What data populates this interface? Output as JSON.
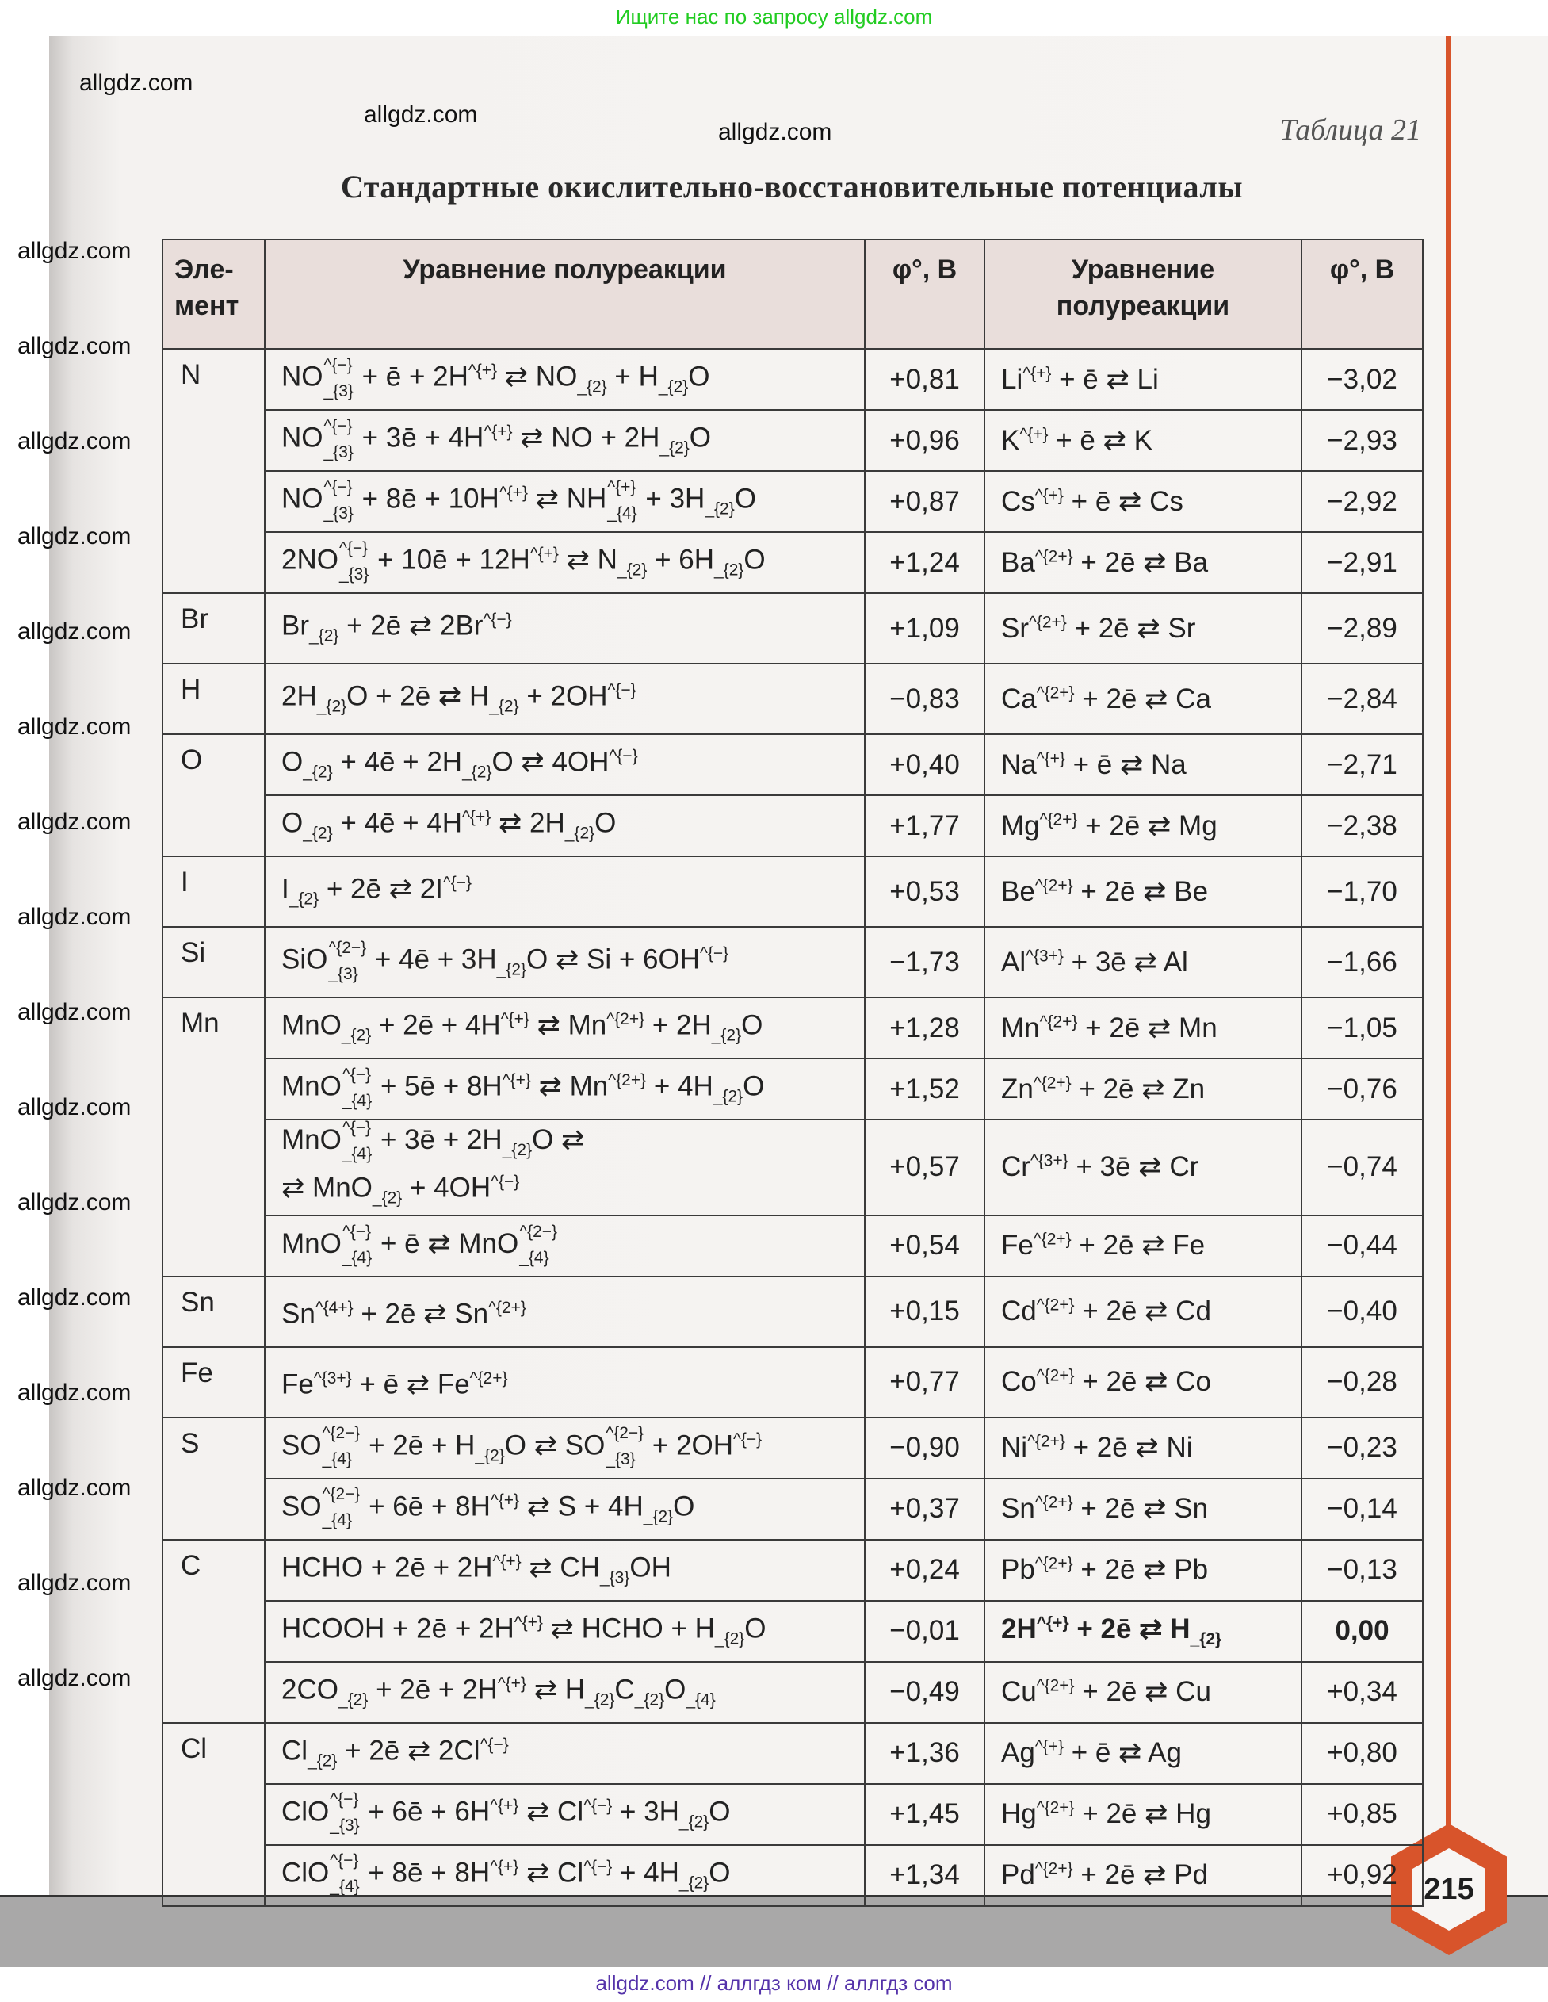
{
  "banner": "Ищите нас по запросу allgdz.com",
  "table_label": "Таблица 21",
  "title": "Стандартные окислительно-восстановительные потенциалы",
  "headers": {
    "element": "Эле-\nмент",
    "equation": "Уравнение полуреакции",
    "phi": "φ°, В",
    "equation2": "Уравнение\nполуреакции",
    "phi2": "φ°, В"
  },
  "rows": [
    {
      "element": "N",
      "eq": "NO_{3}^{−} + ē + 2H^{+} ⇄ NO_{2} + H_{2}O",
      "phi": "+0,81",
      "req": "Li^{+} + ē ⇄ Li",
      "rphi": "−3,02"
    },
    {
      "element": "",
      "eq": "NO_{3}^{−} + 3ē + 4H^{+} ⇄ NO + 2H_{2}O",
      "phi": "+0,96",
      "req": "K^{+} + ē ⇄ K",
      "rphi": "−2,93"
    },
    {
      "element": "",
      "eq": "NO_{3}^{−} + 8ē + 10H^{+} ⇄ NH_{4}^{+} + 3H_{2}O",
      "phi": "+0,87",
      "req": "Cs^{+} + ē ⇄ Cs",
      "rphi": "−2,92"
    },
    {
      "element": "",
      "eq": "2NO_{3}^{−} + 10ē + 12H^{+} ⇄ N_{2} + 6H_{2}O",
      "phi": "+1,24",
      "req": "Ba^{2+} + 2ē ⇄ Ba",
      "rphi": "−2,91"
    },
    {
      "element": "Br",
      "eq": "Br_{2} + 2ē ⇄ 2Br^{−}",
      "phi": "+1,09",
      "req": "Sr^{2+} + 2ē ⇄ Sr",
      "rphi": "−2,89"
    },
    {
      "element": "H",
      "eq": "2H_{2}O + 2ē ⇄ H_{2} + 2OH^{−}",
      "phi": "−0,83",
      "req": "Ca^{2+} + 2ē ⇄ Ca",
      "rphi": "−2,84"
    },
    {
      "element": "O",
      "eq": "O_{2} + 4ē + 2H_{2}O ⇄ 4OH^{−}",
      "phi": "+0,40",
      "req": "Na^{+} + ē ⇄ Na",
      "rphi": "−2,71"
    },
    {
      "element": "",
      "eq": "O_{2} + 4ē + 4H^{+} ⇄ 2H_{2}O",
      "phi": "+1,77",
      "req": "Mg^{2+} + 2ē ⇄ Mg",
      "rphi": "−2,38"
    },
    {
      "element": "I",
      "eq": "I_{2} + 2ē ⇄ 2I^{−}",
      "phi": "+0,53",
      "req": "Be^{2+} + 2ē ⇄ Be",
      "rphi": "−1,70"
    },
    {
      "element": "Si",
      "eq": "SiO_{3}^{2−} + 4ē + 3H_{2}O ⇄ Si + 6OH^{−}",
      "phi": "−1,73",
      "req": "Al^{3+} + 3ē ⇄ Al",
      "rphi": "−1,66"
    },
    {
      "element": "Mn",
      "eq": "MnO_{2} + 2ē + 4H^{+} ⇄ Mn^{2+} + 2H_{2}O",
      "phi": "+1,28",
      "req": "Mn^{2+} + 2ē ⇄ Mn",
      "rphi": "−1,05"
    },
    {
      "element": "",
      "eq": "MnO_{4}^{−} + 5ē + 8H^{+} ⇄ Mn^{2+} + 4H_{2}O",
      "phi": "+1,52",
      "req": "Zn^{2+} + 2ē ⇄ Zn",
      "rphi": "−0,76"
    },
    {
      "element": "",
      "eq": "MnO_{4}^{−} + 3ē + 2H_{2}O ⇄\n⇄ MnO_{2} + 4OH^{−}",
      "phi": "+0,57",
      "req": "Cr^{3+} + 3ē ⇄ Cr",
      "rphi": "−0,74"
    },
    {
      "element": "",
      "eq": "MnO_{4}^{−} + ē ⇄ MnO_{4}^{2−}",
      "phi": "+0,54",
      "req": "Fe^{2+} + 2ē ⇄ Fe",
      "rphi": "−0,44"
    },
    {
      "element": "Sn",
      "eq": "Sn^{4+} + 2ē ⇄ Sn^{2+}",
      "phi": "+0,15",
      "req": "Cd^{2+} + 2ē ⇄ Cd",
      "rphi": "−0,40"
    },
    {
      "element": "Fe",
      "eq": "Fe^{3+} + ē ⇄ Fe^{2+}",
      "phi": "+0,77",
      "req": "Co^{2+} + 2ē ⇄ Co",
      "rphi": "−0,28"
    },
    {
      "element": "S",
      "eq": "SO_{4}^{2−} + 2ē + H_{2}O ⇄ SO_{3}^{2−} + 2OH^{−}",
      "phi": "−0,90",
      "req": "Ni^{2+} + 2ē ⇄ Ni",
      "rphi": "−0,23"
    },
    {
      "element": "",
      "eq": "SO_{4}^{2−} + 6ē + 8H^{+} ⇄ S + 4H_{2}O",
      "phi": "+0,37",
      "req": "Sn^{2+} + 2ē ⇄ Sn",
      "rphi": "−0,14"
    },
    {
      "element": "C",
      "eq": "HCHO + 2ē + 2H^{+} ⇄ CH_{3}OH",
      "phi": "+0,24",
      "req": "Pb^{2+} + 2ē ⇄ Pb",
      "rphi": "−0,13"
    },
    {
      "element": "",
      "eq": "HCOOH + 2ē + 2H^{+} ⇄ HCHO + H_{2}O",
      "phi": "−0,01",
      "req": "2H^{+} + 2ē ⇄ H_{2}",
      "rphi": "0,00",
      "bold_right": true
    },
    {
      "element": "",
      "eq": "2CO_{2} + 2ē + 2H^{+} ⇄ H_{2}C_{2}O_{4}",
      "phi": "−0,49",
      "req": "Cu^{2+} + 2ē ⇄ Cu",
      "rphi": "+0,34"
    },
    {
      "element": "Cl",
      "eq": "Cl_{2} + 2ē ⇄ 2Cl^{−}",
      "phi": "+1,36",
      "req": "Ag^{+} + ē ⇄ Ag",
      "rphi": "+0,80"
    },
    {
      "element": "",
      "eq": "ClO_{3}^{−} + 6ē + 6H^{+} ⇄ Cl^{−} + 3H_{2}O",
      "phi": "+1,45",
      "req": "Hg^{2+} + 2ē ⇄ Hg",
      "rphi": "+0,85"
    },
    {
      "element": "",
      "eq": "ClO_{4}^{−} + 8ē + 8H^{+} ⇄ Cl^{−} + 4H_{2}O",
      "phi": "+1,34",
      "req": "Pd^{2+} + 2ē ⇄ Pd",
      "rphi": "+0,92"
    }
  ],
  "page_number": "215",
  "watermark": "allgdz.com",
  "footer": "allgdz.com  //  аллгдз ком  //  аллгдз com",
  "colors": {
    "accent": "#d8542b",
    "banner": "#22cc22",
    "header_bg": "#e9dedb",
    "footer": "#5533aa"
  }
}
